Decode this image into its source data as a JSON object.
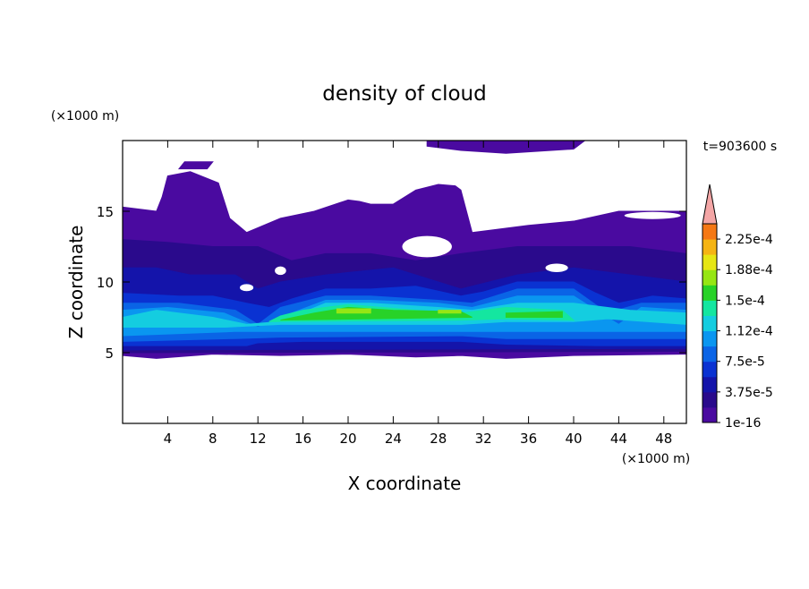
{
  "chart_data": {
    "type": "contour",
    "title": "density of cloud",
    "x_label": "X coordinate",
    "y_label": "Z coordinate",
    "x_unit": "(×1000 m)",
    "y_unit": "(×1000 m)",
    "time_label": "t=903600 s",
    "xlim": [
      0,
      50
    ],
    "ylim": [
      0,
      20
    ],
    "xticks": [
      4,
      8,
      12,
      16,
      20,
      24,
      28,
      32,
      36,
      40,
      44,
      48
    ],
    "yticks": [
      5,
      10,
      15
    ],
    "colorbar": {
      "lim": [
        1e-16,
        0.00024375
      ],
      "ticks": [
        {
          "value": 1e-16,
          "label": "1e-16"
        },
        {
          "value": 3.75e-05,
          "label": "3.75e-5"
        },
        {
          "value": 7.5e-05,
          "label": "7.5e-5"
        },
        {
          "value": 0.0001125,
          "label": "1.12e-4"
        },
        {
          "value": 0.00015,
          "label": "1.5e-4"
        },
        {
          "value": 0.0001875,
          "label": "1.88e-4"
        },
        {
          "value": 0.000225,
          "label": "2.25e-4"
        }
      ],
      "colors": [
        "#4a0aa0",
        "#2a0a8c",
        "#1414aa",
        "#0a32d2",
        "#0a64e6",
        "#0a96f0",
        "#14cde0",
        "#14e6a0",
        "#28d228",
        "#96e614",
        "#e6e614",
        "#f5b414",
        "#f57814",
        "#ee2814"
      ],
      "extend_color": "#f4a6a6"
    }
  }
}
